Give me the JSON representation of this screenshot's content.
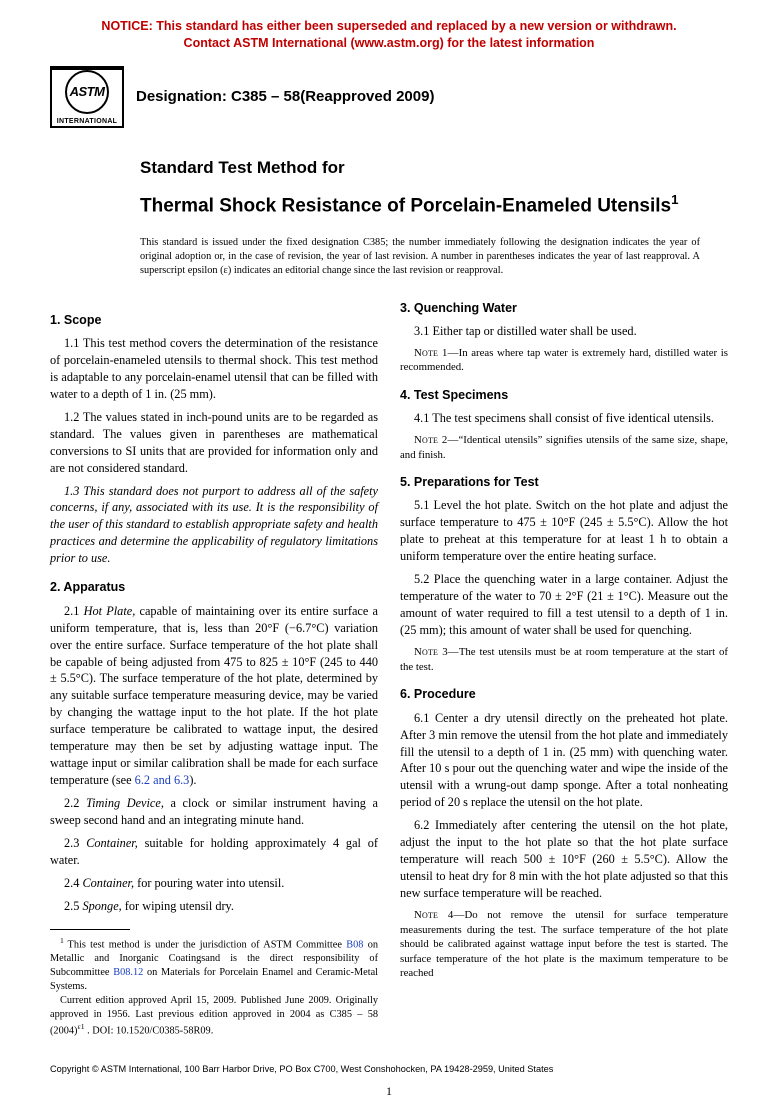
{
  "notice": {
    "line1": "NOTICE: This standard has either been superseded and replaced by a new version or withdrawn.",
    "line2": "Contact ASTM International (www.astm.org) for the latest information"
  },
  "logo": {
    "abbrev": "ASTM",
    "intl": "INTERNATIONAL"
  },
  "designation": "Designation: C385 – 58(Reapproved 2009)",
  "title": {
    "line1": "Standard Test Method for",
    "line2": "Thermal Shock Resistance of Porcelain-Enameled Utensils"
  },
  "issuance": "This standard is issued under the fixed designation C385; the number immediately following the designation indicates the year of original adoption or, in the case of revision, the year of last revision. A number in parentheses indicates the year of last reapproval. A superscript epsilon (ε) indicates an editorial change since the last revision or reapproval.",
  "sections": {
    "s1": {
      "head": "1. Scope",
      "p1_1": "1.1 This test method covers the determination of the resistance of porcelain-enameled utensils to thermal shock. This test method is adaptable to any porcelain-enamel utensil that can be filled with water to a depth of 1 in. (25 mm).",
      "p1_2": "1.2 The values stated in inch-pound units are to be regarded as standard. The values given in parentheses are mathematical conversions to SI units that are provided for information only and are not considered standard.",
      "p1_3": "1.3 This standard does not purport to address all of the safety concerns, if any, associated with its use. It is the responsibility of the user of this standard to establish appropriate safety and health practices and determine the applicability of regulatory limitations prior to use."
    },
    "s2": {
      "head": "2. Apparatus",
      "p2_1a": "2.1 ",
      "p2_1_term": "Hot Plate,",
      "p2_1b": " capable of maintaining over its entire surface a uniform temperature, that is, less than 20°F (−6.7°C) variation over the entire surface. Surface temperature of the hot plate shall be capable of being adjusted from 475 to 825 ± 10°F (245 to 440 ± 5.5°C). The surface temperature of the hot plate, determined by any suitable surface temperature measuring device, may be varied by changing the wattage input to the hot plate. If the hot plate surface temperature be calibrated to wattage input, the desired temperature may then be set by adjusting wattage input. The wattage input or similar calibration shall be made for each surface temperature (see ",
      "p2_1_ref": "6.2 and 6.3",
      "p2_1c": ").",
      "p2_2a": "2.2 ",
      "p2_2_term": "Timing Device,",
      "p2_2b": " a clock or similar instrument having a sweep second hand and an integrating minute hand.",
      "p2_3a": "2.3 ",
      "p2_3_term": "Container,",
      "p2_3b": " suitable for holding approximately 4 gal of water.",
      "p2_4a": "2.4 ",
      "p2_4_term": "Container,",
      "p2_4b": " for pouring water into utensil.",
      "p2_5a": "2.5 ",
      "p2_5_term": "Sponge,",
      "p2_5b": " for wiping utensil dry."
    },
    "s3": {
      "head": "3. Quenching Water",
      "p3_1": "3.1 Either tap or distilled water shall be used.",
      "note1_label": "Note 1—",
      "note1": "In areas where tap water is extremely hard, distilled water is recommended."
    },
    "s4": {
      "head": "4. Test Specimens",
      "p4_1": "4.1 The test specimens shall consist of five identical utensils.",
      "note2_label": "Note 2—",
      "note2": "“Identical utensils” signifies utensils of the same size, shape, and finish."
    },
    "s5": {
      "head": "5. Preparations for Test",
      "p5_1": "5.1 Level the hot plate. Switch on the hot plate and adjust the surface temperature to 475 ± 10°F (245 ± 5.5°C). Allow the hot plate to preheat at this temperature for at least 1 h to obtain a uniform temperature over the entire heating surface.",
      "p5_2": "5.2 Place the quenching water in a large container. Adjust the temperature of the water to 70 ± 2°F (21 ± 1°C). Measure out the amount of water required to fill a test utensil to a depth of 1 in. (25 mm); this amount of water shall be used for quenching.",
      "note3_label": "Note 3—",
      "note3": "The test utensils must be at room temperature at the start of the test."
    },
    "s6": {
      "head": "6. Procedure",
      "p6_1": "6.1 Center a dry utensil directly on the preheated hot plate. After 3 min remove the utensil from the hot plate and immediately fill the utensil to a depth of 1 in. (25 mm) with quenching water. After 10 s pour out the quenching water and wipe the inside of the utensil with a wrung-out damp sponge. After a total nonheating period of 20 s replace the utensil on the hot plate.",
      "p6_2": "6.2 Immediately after centering the utensil on the hot plate, adjust the input to the hot plate so that the hot plate surface temperature will reach 500 ± 10°F (260 ± 5.5°C). Allow the utensil to heat dry for 8 min with the hot plate adjusted so that this new surface temperature will be reached.",
      "note4_label": "Note 4—",
      "note4": "Do not remove the utensil for surface temperature measurements during the test. The surface temperature of the hot plate should be calibrated against wattage input before the test is started. The surface temperature of the hot plate is the maximum temperature to be reached"
    }
  },
  "footnote": {
    "fn1a": "This test method is under the jurisdiction of ASTM Committee ",
    "fn1_link1": "B08",
    "fn1b": " on Metallic and Inorganic Coatingsand is the direct responsibility of Subcommittee ",
    "fn1_link2": "B08.12",
    "fn1c": " on Materials for Porcelain Enamel and Ceramic-Metal Systems.",
    "fn2": "Current edition approved April 15, 2009. Published June 2009. Originally approved in 1956. Last previous edition approved in 2004 as C385 – 58 (2004)",
    "fn2_eps": "ε1",
    "fn2_end": " . DOI: 10.1520/C0385-58R09."
  },
  "copyright": "Copyright © ASTM International, 100 Barr Harbor Drive, PO Box C700, West Conshohocken, PA 19428-2959, United States",
  "pagenum": "1",
  "colors": {
    "notice": "#c00000",
    "link": "#1a3fbf",
    "text": "#000000",
    "background": "#ffffff"
  },
  "fonts": {
    "body": "Times New Roman",
    "heads": "Arial",
    "body_size_pt": 10,
    "head_size_pt": 10,
    "title_size_pt": 15,
    "notice_size_pt": 10
  }
}
